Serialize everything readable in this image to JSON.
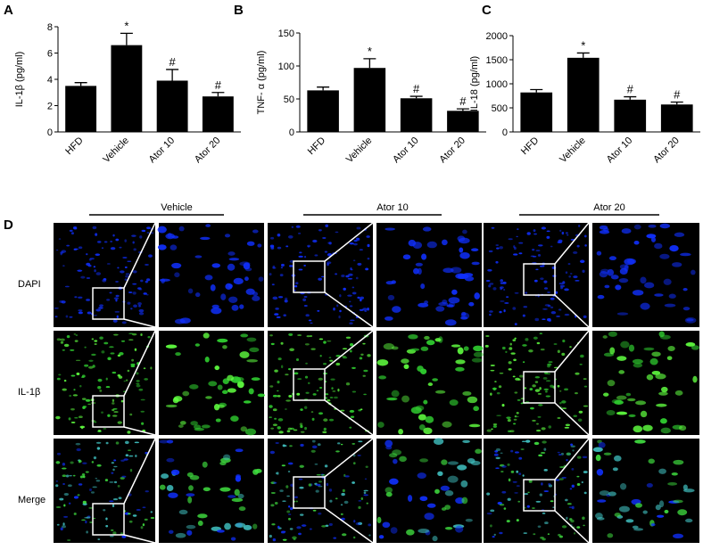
{
  "chart_data": [
    {
      "type": "bar",
      "panel": "A",
      "ylabel": "IL-1β  (pg/ml)",
      "categories": [
        "HFD",
        "Vehicle",
        "Ator 10",
        "Ator 20"
      ],
      "values": [
        3.5,
        6.6,
        3.9,
        2.7
      ],
      "errors": [
        0.25,
        0.9,
        0.85,
        0.3
      ],
      "annotations": [
        null,
        "*",
        "#",
        "#"
      ],
      "color": "#000000",
      "ylim": [
        0,
        8
      ],
      "yticks": [
        0,
        2,
        4,
        6,
        8
      ]
    },
    {
      "type": "bar",
      "panel": "B",
      "ylabel": "TNF- α  (pg/ml)",
      "categories": [
        "HFD",
        "Vehicle",
        "Ator 10",
        "Ator 20"
      ],
      "values": [
        63,
        97,
        51,
        32
      ],
      "errors": [
        5,
        14,
        3,
        3
      ],
      "annotations": [
        null,
        "*",
        "#",
        "#"
      ],
      "color": "#000000",
      "ylim": [
        0,
        150
      ],
      "yticks": [
        0,
        50,
        100,
        150
      ]
    },
    {
      "type": "bar",
      "panel": "C",
      "ylabel": "IL-18  (pg/ml)",
      "categories": [
        "HFD",
        "Vehicle",
        "Ator 10",
        "Ator 20"
      ],
      "values": [
        820,
        1540,
        670,
        570
      ],
      "errors": [
        60,
        100,
        60,
        50
      ],
      "annotations": [
        null,
        "*",
        "#",
        "#"
      ],
      "color": "#000000",
      "ylim": [
        0,
        2000
      ],
      "yticks": [
        0,
        500,
        1000,
        1500,
        2000
      ]
    }
  ],
  "panel_d": {
    "label": "D",
    "columns": [
      "Vehicle",
      "Ator 10",
      "Ator 20"
    ],
    "rows": [
      "DAPI",
      "IL-1β",
      "Merge"
    ]
  }
}
